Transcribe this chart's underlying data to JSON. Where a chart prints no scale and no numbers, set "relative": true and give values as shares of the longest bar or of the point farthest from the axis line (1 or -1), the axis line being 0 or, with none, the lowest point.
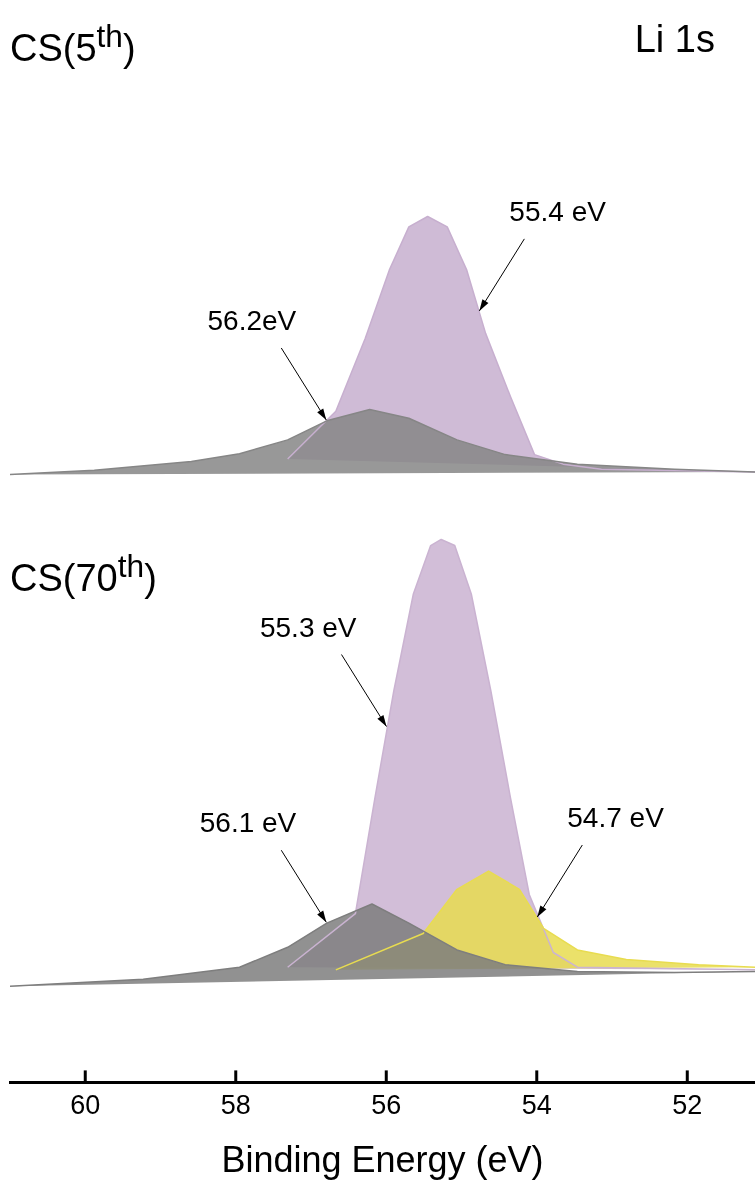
{
  "chart_data": {
    "type": "area",
    "title": "Li 1s",
    "xlabel": "Binding Energy (eV)",
    "relative": true,
    "xlim": [
      61.0,
      51.1
    ],
    "xticks": [
      60,
      58,
      56,
      54,
      52
    ],
    "grid": false,
    "legend": false,
    "annotations": [
      "CS(5$^{th}$)",
      "CS(70$^{th}$)",
      {
        "text": "55.4 eV",
        "x": 54.77,
        "y": 0.89
      },
      {
        "text": "56.2eV",
        "x": 56.79,
        "y": 0.764
      },
      {
        "text": "55.3 eV",
        "x": 55.99,
        "y": 0.41
      },
      {
        "text": "56.1 eV",
        "x": 56.79,
        "y": 0.184
      },
      {
        "text": "54.7 eV",
        "x": 54.0,
        "y": 0.19
      }
    ],
    "series": [
      {
        "color": "#868686",
        "x": [
          61.0,
          59.88,
          58.59,
          57.95,
          57.31,
          56.79,
          56.22,
          55.7,
          55.06,
          54.42,
          53.46,
          52.17,
          51.1
        ],
        "values": [
          0.702,
          0.707,
          0.717,
          0.726,
          0.742,
          0.764,
          0.777,
          0.767,
          0.742,
          0.725,
          0.714,
          0.708,
          0.705
        ]
      },
      {
        "color": "#c7afcf",
        "x": [
          57.31,
          56.67,
          56.28,
          55.96,
          55.7,
          55.45,
          55.19,
          54.93,
          54.68,
          54.35,
          54.03,
          53.65,
          53.14,
          51.1
        ],
        "values": [
          0.72,
          0.775,
          0.859,
          0.938,
          0.988,
          1.0,
          0.988,
          0.938,
          0.865,
          0.792,
          0.725,
          0.714,
          0.708,
          0.705
        ]
      },
      {
        "color": "#7e7e7e",
        "x": [
          61.0,
          59.23,
          57.95,
          57.31,
          56.79,
          56.19,
          55.7,
          55.06,
          54.42,
          53.46,
          52.17,
          51.1
        ],
        "values": [
          0.111,
          0.119,
          0.133,
          0.156,
          0.184,
          0.206,
          0.184,
          0.153,
          0.136,
          0.128,
          0.127,
          0.128
        ]
      },
      {
        "color": "#e8dc50",
        "x": [
          56.67,
          55.51,
          55.06,
          54.64,
          54.23,
          53.91,
          53.46,
          52.81,
          51.85,
          51.1
        ],
        "values": [
          0.13,
          0.172,
          0.223,
          0.244,
          0.223,
          0.178,
          0.153,
          0.142,
          0.136,
          0.133
        ]
      },
      {
        "color": "#cab3d1",
        "x": [
          57.31,
          56.41,
          56.15,
          55.9,
          55.64,
          55.41,
          55.27,
          55.09,
          54.87,
          54.61,
          54.35,
          54.1,
          53.78,
          53.46,
          51.1
        ],
        "values": [
          0.133,
          0.195,
          0.329,
          0.452,
          0.564,
          0.62,
          0.627,
          0.62,
          0.564,
          0.452,
          0.329,
          0.217,
          0.15,
          0.133,
          0.13
        ]
      }
    ]
  }
}
